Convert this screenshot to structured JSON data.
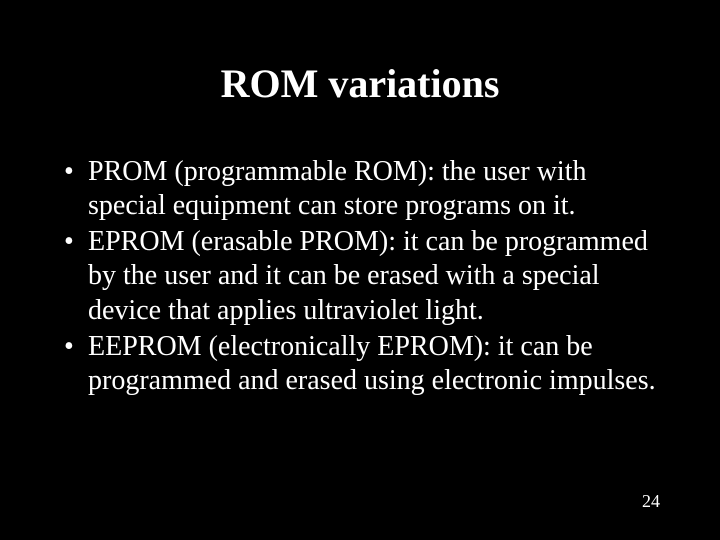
{
  "slide": {
    "background_color": "#000000",
    "text_color": "#ffffff",
    "font_family": "Times New Roman",
    "title": "ROM variations",
    "title_fontsize": 40,
    "title_fontweight": "bold",
    "title_align": "center",
    "body_fontsize": 28,
    "line_height": 1.22,
    "bullet_char": "•",
    "bullets": [
      "PROM (programmable ROM): the user with special equipment can store programs on it.",
      "EPROM (erasable PROM): it can be programmed by the user and it can be erased with a special device that applies ultraviolet light.",
      "EEPROM (electronically EPROM): it can be programmed and erased using electronic impulses."
    ],
    "page_number": "24",
    "page_number_fontsize": 18
  }
}
